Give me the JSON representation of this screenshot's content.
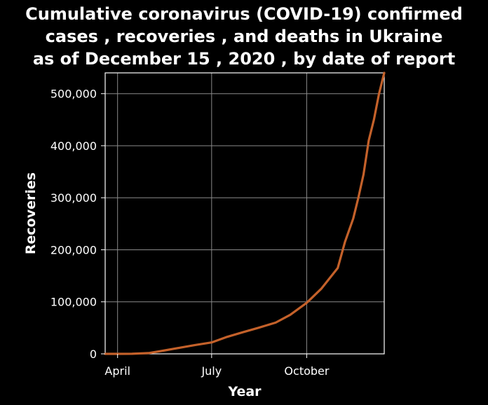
{
  "chart_data": {
    "type": "line",
    "title_lines": [
      "Cumulative coronavirus (COVID-19) confirmed",
      "cases , recoveries , and deaths in Ukraine",
      "as of December 15 , 2020 , by date of report"
    ],
    "xlabel": "Year",
    "ylabel": "Recoveries",
    "x_ticks": [
      "April",
      "July",
      "October"
    ],
    "x_tick_dates": [
      "2020-04-01",
      "2020-07-01",
      "2020-10-01"
    ],
    "xlim": [
      "2020-03-20",
      "2020-12-15"
    ],
    "ylim": [
      0,
      540000
    ],
    "y_ticks": [
      0,
      100000,
      200000,
      300000,
      400000,
      500000
    ],
    "y_tick_labels": [
      "0",
      "100,000",
      "200,000",
      "300,000",
      "400,000",
      "500,000"
    ],
    "grid": true,
    "colors": {
      "series": "#c4612a",
      "background": "#000000",
      "grid": "#8a8a8a"
    },
    "series": [
      {
        "points": [
          [
            "2020-03-20",
            0
          ],
          [
            "2020-04-01",
            0
          ],
          [
            "2020-04-15",
            200
          ],
          [
            "2020-05-01",
            1500
          ],
          [
            "2020-05-15",
            6000
          ],
          [
            "2020-06-01",
            12000
          ],
          [
            "2020-06-15",
            17000
          ],
          [
            "2020-07-01",
            22000
          ],
          [
            "2020-07-15",
            32000
          ],
          [
            "2020-08-01",
            42000
          ],
          [
            "2020-08-15",
            50000
          ],
          [
            "2020-09-01",
            60000
          ],
          [
            "2020-09-15",
            75000
          ],
          [
            "2020-10-01",
            98000
          ],
          [
            "2020-10-15",
            125000
          ],
          [
            "2020-10-31",
            165000
          ],
          [
            "2020-11-07",
            215000
          ],
          [
            "2020-11-15",
            260000
          ],
          [
            "2020-11-20",
            300000
          ],
          [
            "2020-11-25",
            345000
          ],
          [
            "2020-11-30",
            410000
          ],
          [
            "2020-12-05",
            450000
          ],
          [
            "2020-12-10",
            500000
          ],
          [
            "2020-12-15",
            540000
          ]
        ]
      }
    ]
  }
}
